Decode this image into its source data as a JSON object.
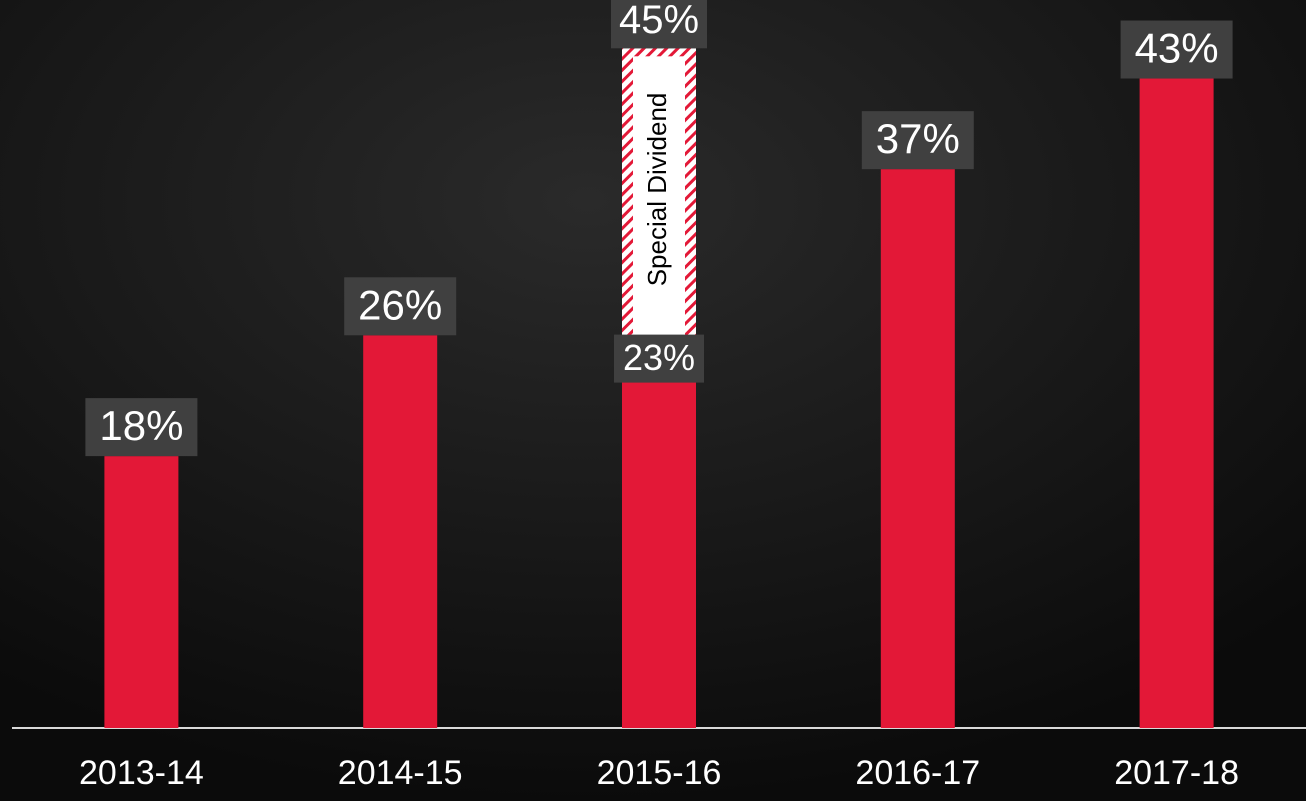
{
  "chart_data": {
    "type": "bar",
    "categories": [
      "2013-14",
      "2014-15",
      "2015-16",
      "2016-17",
      "2017-18"
    ],
    "series": [
      {
        "color": "#e31837",
        "values": [
          18,
          26,
          23,
          37,
          43
        ],
        "value_labels": [
          "18%",
          "26%",
          "23%",
          "37%",
          "43%"
        ]
      },
      {
        "name": "Special Dividend",
        "color": "#e31837",
        "values": [
          null,
          null,
          22,
          null,
          null
        ]
      }
    ],
    "totals": [
      null,
      null,
      45,
      null,
      null
    ],
    "total_labels": [
      null,
      null,
      "45%",
      null,
      null
    ],
    "ylim": [
      0,
      48
    ]
  }
}
